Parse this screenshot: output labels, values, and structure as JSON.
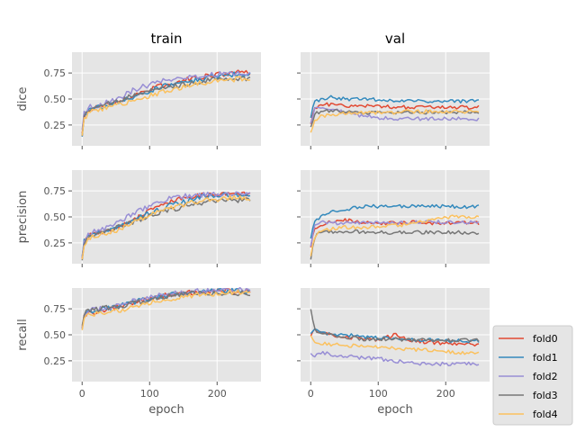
{
  "chart_data": {
    "type": "line",
    "layout": "grid 3 rows x 2 columns",
    "grid": true,
    "legend_placement": "lower-right outside",
    "columns": [
      "train",
      "val"
    ],
    "rows": [
      "dice",
      "precision",
      "recall"
    ],
    "xlabel": "epoch",
    "xlim": [
      -15,
      265
    ],
    "xticks": [
      0,
      100,
      200
    ],
    "ylim": [
      0.05,
      0.95
    ],
    "yticks": [
      0.25,
      0.5,
      0.75
    ],
    "ytick_labels": [
      "0.25",
      "0.50",
      "0.75"
    ],
    "series_names": [
      "fold0",
      "fold1",
      "fold2",
      "fold3",
      "fold4"
    ],
    "series_colors": [
      "#E24A33",
      "#348ABD",
      "#988ED5",
      "#777777",
      "#FBC15E"
    ],
    "panels": [
      {
        "row": "dice",
        "column": "train",
        "series": [
          {
            "name": "fold0",
            "x": [
              0,
              3,
              10,
              25,
              50,
              75,
              100,
              125,
              150,
              175,
              200,
              225,
              250
            ],
            "y": [
              0.15,
              0.32,
              0.4,
              0.43,
              0.47,
              0.53,
              0.59,
              0.64,
              0.68,
              0.71,
              0.73,
              0.75,
              0.76
            ]
          },
          {
            "name": "fold1",
            "x": [
              0,
              3,
              10,
              25,
              50,
              75,
              100,
              125,
              150,
              175,
              200,
              225,
              250
            ],
            "y": [
              0.16,
              0.35,
              0.41,
              0.42,
              0.46,
              0.52,
              0.58,
              0.63,
              0.66,
              0.69,
              0.72,
              0.74,
              0.74
            ]
          },
          {
            "name": "fold2",
            "x": [
              0,
              3,
              10,
              25,
              50,
              75,
              100,
              125,
              150,
              175,
              200,
              225,
              250
            ],
            "y": [
              0.2,
              0.36,
              0.42,
              0.44,
              0.5,
              0.58,
              0.64,
              0.68,
              0.7,
              0.72,
              0.74,
              0.75,
              0.74
            ]
          },
          {
            "name": "fold3",
            "x": [
              0,
              3,
              10,
              25,
              50,
              75,
              100,
              125,
              150,
              175,
              200,
              225,
              250
            ],
            "y": [
              0.15,
              0.33,
              0.4,
              0.43,
              0.47,
              0.54,
              0.58,
              0.61,
              0.64,
              0.67,
              0.69,
              0.7,
              0.7
            ]
          },
          {
            "name": "fold4",
            "x": [
              0,
              3,
              10,
              25,
              50,
              75,
              100,
              125,
              150,
              175,
              200,
              225,
              250
            ],
            "y": [
              0.15,
              0.3,
              0.38,
              0.4,
              0.44,
              0.48,
              0.53,
              0.58,
              0.62,
              0.65,
              0.68,
              0.69,
              0.7
            ]
          }
        ]
      },
      {
        "row": "dice",
        "column": "val",
        "series": [
          {
            "name": "fold0",
            "x": [
              0,
              5,
              15,
              30,
              50,
              75,
              100,
              125,
              150,
              175,
              200,
              225,
              250
            ],
            "y": [
              0.25,
              0.4,
              0.44,
              0.45,
              0.44,
              0.43,
              0.43,
              0.42,
              0.42,
              0.42,
              0.42,
              0.42,
              0.42
            ]
          },
          {
            "name": "fold1",
            "x": [
              0,
              5,
              15,
              30,
              50,
              75,
              100,
              125,
              150,
              175,
              200,
              225,
              250
            ],
            "y": [
              0.33,
              0.47,
              0.5,
              0.52,
              0.5,
              0.5,
              0.49,
              0.49,
              0.49,
              0.48,
              0.48,
              0.48,
              0.48
            ]
          },
          {
            "name": "fold2",
            "x": [
              0,
              5,
              15,
              30,
              50,
              75,
              100,
              125,
              150,
              175,
              200,
              225,
              250
            ],
            "y": [
              0.25,
              0.4,
              0.42,
              0.4,
              0.37,
              0.34,
              0.32,
              0.31,
              0.31,
              0.31,
              0.31,
              0.31,
              0.31
            ]
          },
          {
            "name": "fold3",
            "x": [
              0,
              5,
              15,
              30,
              50,
              75,
              100,
              125,
              150,
              175,
              200,
              225,
              250
            ],
            "y": [
              0.22,
              0.35,
              0.38,
              0.39,
              0.38,
              0.37,
              0.37,
              0.37,
              0.37,
              0.37,
              0.37,
              0.37,
              0.37
            ]
          },
          {
            "name": "fold4",
            "x": [
              0,
              5,
              15,
              30,
              50,
              75,
              100,
              125,
              150,
              175,
              200,
              225,
              250
            ],
            "y": [
              0.18,
              0.28,
              0.33,
              0.35,
              0.36,
              0.37,
              0.37,
              0.37,
              0.38,
              0.38,
              0.38,
              0.38,
              0.38
            ]
          }
        ]
      },
      {
        "row": "precision",
        "column": "train",
        "series": [
          {
            "name": "fold0",
            "x": [
              0,
              3,
              10,
              25,
              50,
              75,
              100,
              125,
              150,
              175,
              200,
              225,
              250
            ],
            "y": [
              0.1,
              0.25,
              0.32,
              0.35,
              0.4,
              0.47,
              0.56,
              0.63,
              0.68,
              0.71,
              0.72,
              0.73,
              0.72
            ]
          },
          {
            "name": "fold1",
            "x": [
              0,
              3,
              10,
              25,
              50,
              75,
              100,
              125,
              150,
              175,
              200,
              225,
              250
            ],
            "y": [
              0.11,
              0.27,
              0.33,
              0.35,
              0.39,
              0.46,
              0.54,
              0.6,
              0.65,
              0.69,
              0.71,
              0.72,
              0.72
            ]
          },
          {
            "name": "fold2",
            "x": [
              0,
              3,
              10,
              25,
              50,
              75,
              100,
              125,
              150,
              175,
              200,
              225,
              250
            ],
            "y": [
              0.12,
              0.28,
              0.34,
              0.37,
              0.44,
              0.53,
              0.61,
              0.67,
              0.7,
              0.71,
              0.72,
              0.72,
              0.71
            ]
          },
          {
            "name": "fold3",
            "x": [
              0,
              3,
              10,
              25,
              50,
              75,
              100,
              125,
              150,
              175,
              200,
              225,
              250
            ],
            "y": [
              0.1,
              0.25,
              0.31,
              0.34,
              0.39,
              0.45,
              0.51,
              0.56,
              0.6,
              0.63,
              0.65,
              0.66,
              0.66
            ]
          },
          {
            "name": "fold4",
            "x": [
              0,
              3,
              10,
              25,
              50,
              75,
              100,
              125,
              150,
              175,
              200,
              225,
              250
            ],
            "y": [
              0.1,
              0.24,
              0.3,
              0.33,
              0.37,
              0.44,
              0.52,
              0.58,
              0.62,
              0.65,
              0.67,
              0.68,
              0.68
            ]
          }
        ]
      },
      {
        "row": "precision",
        "column": "val",
        "series": [
          {
            "name": "fold0",
            "x": [
              0,
              5,
              15,
              30,
              50,
              75,
              100,
              125,
              150,
              175,
              200,
              225,
              250
            ],
            "y": [
              0.2,
              0.38,
              0.42,
              0.45,
              0.47,
              0.45,
              0.44,
              0.44,
              0.45,
              0.44,
              0.44,
              0.44,
              0.44
            ]
          },
          {
            "name": "fold1",
            "x": [
              0,
              5,
              15,
              30,
              50,
              75,
              100,
              125,
              150,
              175,
              200,
              225,
              250
            ],
            "y": [
              0.3,
              0.45,
              0.5,
              0.55,
              0.57,
              0.6,
              0.6,
              0.6,
              0.6,
              0.6,
              0.6,
              0.6,
              0.6
            ]
          },
          {
            "name": "fold2",
            "x": [
              0,
              5,
              15,
              30,
              50,
              75,
              100,
              125,
              150,
              175,
              200,
              225,
              250
            ],
            "y": [
              0.22,
              0.42,
              0.45,
              0.44,
              0.44,
              0.44,
              0.44,
              0.44,
              0.45,
              0.45,
              0.45,
              0.45,
              0.45
            ]
          },
          {
            "name": "fold3",
            "x": [
              0,
              5,
              15,
              30,
              50,
              75,
              100,
              125,
              150,
              175,
              200,
              225,
              250
            ],
            "y": [
              0.1,
              0.3,
              0.35,
              0.36,
              0.36,
              0.36,
              0.35,
              0.35,
              0.35,
              0.35,
              0.35,
              0.35,
              0.35
            ]
          },
          {
            "name": "fold4",
            "x": [
              0,
              5,
              15,
              30,
              50,
              75,
              100,
              125,
              150,
              175,
              200,
              225,
              250
            ],
            "y": [
              0.12,
              0.3,
              0.36,
              0.38,
              0.4,
              0.4,
              0.41,
              0.42,
              0.43,
              0.47,
              0.5,
              0.5,
              0.5
            ]
          }
        ]
      },
      {
        "row": "recall",
        "column": "train",
        "series": [
          {
            "name": "fold0",
            "x": [
              0,
              3,
              10,
              25,
              50,
              75,
              100,
              125,
              150,
              175,
              200,
              225,
              250
            ],
            "y": [
              0.55,
              0.68,
              0.71,
              0.73,
              0.76,
              0.8,
              0.85,
              0.88,
              0.9,
              0.91,
              0.92,
              0.92,
              0.92
            ]
          },
          {
            "name": "fold1",
            "x": [
              0,
              3,
              10,
              25,
              50,
              75,
              100,
              125,
              150,
              175,
              200,
              225,
              250
            ],
            "y": [
              0.56,
              0.69,
              0.72,
              0.74,
              0.77,
              0.81,
              0.85,
              0.88,
              0.9,
              0.91,
              0.92,
              0.92,
              0.92
            ]
          },
          {
            "name": "fold2",
            "x": [
              0,
              3,
              10,
              25,
              50,
              75,
              100,
              125,
              150,
              175,
              200,
              225,
              250
            ],
            "y": [
              0.57,
              0.7,
              0.73,
              0.75,
              0.78,
              0.82,
              0.86,
              0.89,
              0.91,
              0.92,
              0.92,
              0.93,
              0.93
            ]
          },
          {
            "name": "fold3",
            "x": [
              0,
              3,
              10,
              25,
              50,
              75,
              100,
              125,
              150,
              175,
              200,
              225,
              250
            ],
            "y": [
              0.58,
              0.7,
              0.73,
              0.75,
              0.77,
              0.8,
              0.84,
              0.87,
              0.89,
              0.9,
              0.9,
              0.9,
              0.9
            ]
          },
          {
            "name": "fold4",
            "x": [
              0,
              3,
              10,
              25,
              50,
              75,
              100,
              125,
              150,
              175,
              200,
              225,
              250
            ],
            "y": [
              0.53,
              0.66,
              0.69,
              0.71,
              0.73,
              0.77,
              0.81,
              0.84,
              0.87,
              0.89,
              0.9,
              0.91,
              0.91
            ]
          }
        ]
      },
      {
        "row": "recall",
        "column": "val",
        "series": [
          {
            "name": "fold0",
            "x": [
              0,
              5,
              15,
              30,
              50,
              75,
              100,
              125,
              150,
              175,
              200,
              225,
              250
            ],
            "y": [
              0.5,
              0.55,
              0.52,
              0.5,
              0.48,
              0.47,
              0.45,
              0.5,
              0.44,
              0.43,
              0.42,
              0.41,
              0.41
            ]
          },
          {
            "name": "fold1",
            "x": [
              0,
              5,
              15,
              30,
              50,
              75,
              100,
              125,
              150,
              175,
              200,
              225,
              250
            ],
            "y": [
              0.5,
              0.55,
              0.52,
              0.5,
              0.5,
              0.48,
              0.47,
              0.46,
              0.45,
              0.45,
              0.44,
              0.44,
              0.44
            ]
          },
          {
            "name": "fold2",
            "x": [
              0,
              5,
              15,
              30,
              50,
              75,
              100,
              125,
              150,
              175,
              200,
              225,
              250
            ],
            "y": [
              0.32,
              0.28,
              0.33,
              0.31,
              0.3,
              0.28,
              0.27,
              0.25,
              0.23,
              0.22,
              0.22,
              0.22,
              0.22
            ]
          },
          {
            "name": "fold3",
            "x": [
              0,
              5,
              15,
              30,
              50,
              75,
              100,
              125,
              150,
              175,
              200,
              225,
              250
            ],
            "y": [
              0.75,
              0.55,
              0.52,
              0.5,
              0.48,
              0.46,
              0.46,
              0.46,
              0.45,
              0.45,
              0.45,
              0.45,
              0.45
            ]
          },
          {
            "name": "fold4",
            "x": [
              0,
              5,
              15,
              30,
              50,
              75,
              100,
              125,
              150,
              175,
              200,
              225,
              250
            ],
            "y": [
              0.48,
              0.43,
              0.42,
              0.41,
              0.4,
              0.39,
              0.38,
              0.37,
              0.36,
              0.35,
              0.34,
              0.33,
              0.33
            ]
          }
        ]
      }
    ]
  }
}
